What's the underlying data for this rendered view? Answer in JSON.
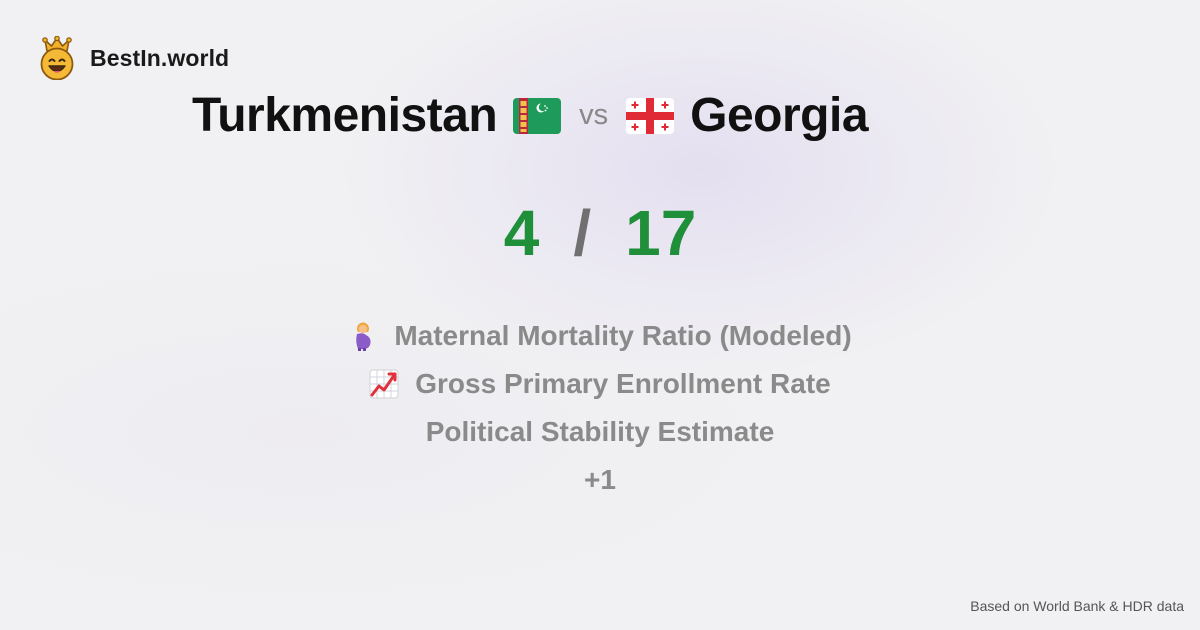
{
  "brand": {
    "name": "BestIn.world",
    "logo_icon": "smiling-crown-face-icon"
  },
  "comparison": {
    "left_country": "Turkmenistan",
    "left_flag_icon": "turkmenistan-flag-icon",
    "vs_label": "vs",
    "right_country": "Georgia",
    "right_flag_icon": "georgia-flag-icon"
  },
  "score": {
    "left": "4",
    "separator": "/",
    "right": "17",
    "color": "#1f8f3a"
  },
  "metrics": [
    {
      "label": "Maternal Mortality Ratio (Modeled)",
      "icon": "pregnant-woman-icon"
    },
    {
      "label": "Gross Primary Enrollment Rate",
      "icon": "chart-increasing-icon"
    },
    {
      "label": "Political Stability Estimate"
    },
    {
      "label": "+1"
    }
  ],
  "footer": {
    "source": "Based on World Bank & HDR data"
  }
}
